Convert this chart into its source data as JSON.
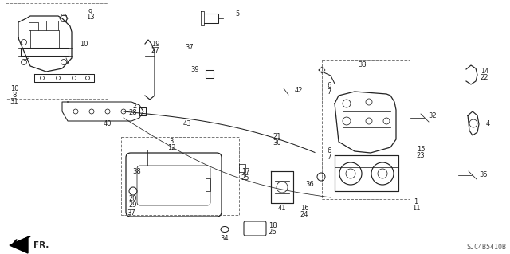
{
  "background_color": "#ffffff",
  "diagram_color": "#222222",
  "border_color": "#888888",
  "fig_width": 6.4,
  "fig_height": 3.19,
  "dpi": 100,
  "watermark": "SJC4B5410B",
  "fr_label": "FR.",
  "lw": 0.55,
  "lw_thick": 0.9,
  "fontsize": 6.0
}
